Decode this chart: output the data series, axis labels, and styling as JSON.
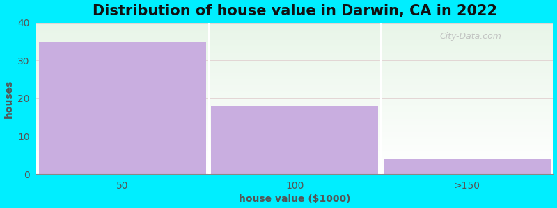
{
  "title": "Distribution of house value in Darwin, CA in 2022",
  "categories": [
    "50",
    "100",
    ">150"
  ],
  "values": [
    35,
    18,
    4
  ],
  "bar_color": "#c9aee0",
  "xlabel": "house value ($1000)",
  "ylabel": "houses",
  "ylim": [
    0,
    40
  ],
  "yticks": [
    0,
    10,
    20,
    30,
    40
  ],
  "background_outer": "#00eeff",
  "bg_top_color": "#e8f5e8",
  "bg_bottom_color": "#f8fff8",
  "grid_color": "#e0d0d0",
  "title_fontsize": 15,
  "axis_label_fontsize": 10,
  "tick_fontsize": 10,
  "watermark": "City-Data.com",
  "bar_width": 0.97
}
